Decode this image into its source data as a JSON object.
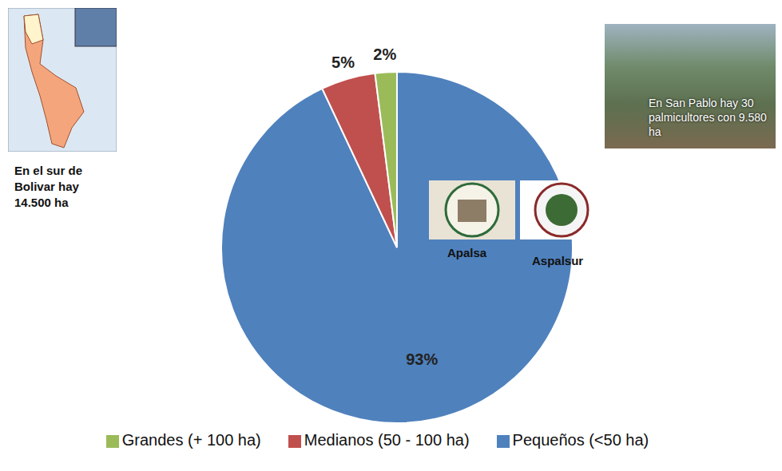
{
  "chart_data": {
    "type": "pie",
    "categories": [
      "Pequeños (<50 ha)",
      "Medianos (50 - 100 ha)",
      "Grandes (+ 100 ha)"
    ],
    "values": [
      93,
      5,
      2
    ],
    "value_labels": [
      "93%",
      "5%",
      "2%"
    ],
    "colors": [
      "#4f81bd",
      "#c0504d",
      "#9bbb59"
    ],
    "data_labels": true,
    "legend": "bottom",
    "annotations": [
      "En el sur de Bolivar hay 14.500 ha",
      "En San Pablo hay 30 palmicultores con 9.580 ha",
      "Apalsa",
      "Aspalsur"
    ]
  }
}
